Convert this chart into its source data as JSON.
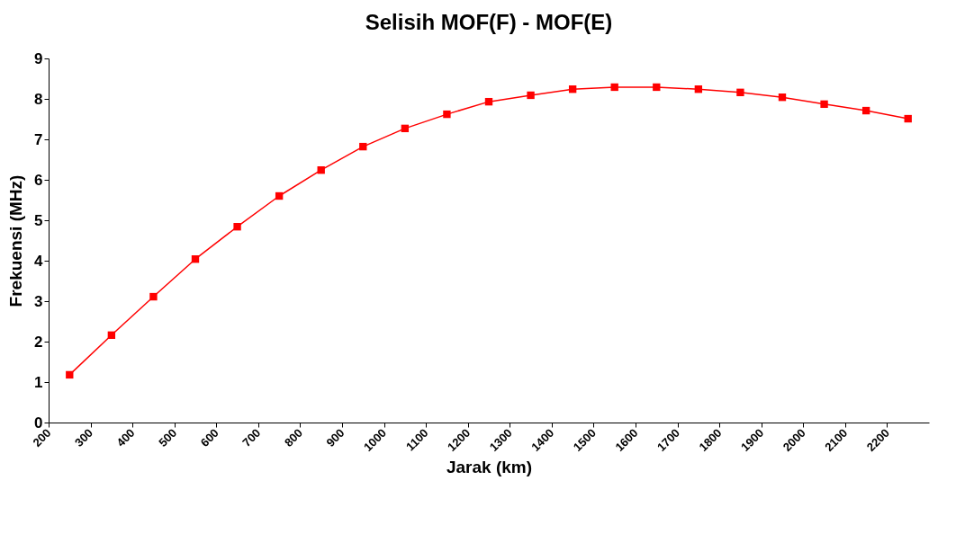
{
  "chart_data": {
    "type": "line",
    "title": "Selisih MOF(F) - MOF(E)",
    "xlabel": "Jarak (km)",
    "ylabel": "Frekuensi (MHz)",
    "x": [
      250,
      350,
      450,
      550,
      650,
      750,
      850,
      950,
      1050,
      1150,
      1250,
      1350,
      1450,
      1550,
      1650,
      1750,
      1850,
      1950,
      2050,
      2150,
      2250
    ],
    "series": [
      {
        "color": "#ff0000",
        "values": [
          1.18,
          2.16,
          3.11,
          4.04,
          4.84,
          5.6,
          6.24,
          6.82,
          7.27,
          7.62,
          7.93,
          8.09,
          8.24,
          8.29,
          8.29,
          8.24,
          8.16,
          8.04,
          7.87,
          7.71,
          7.51
        ]
      }
    ],
    "xlim": [
      200,
      2300
    ],
    "xticks": [
      200,
      300,
      400,
      500,
      600,
      700,
      800,
      900,
      1000,
      1100,
      1200,
      1300,
      1400,
      1500,
      1600,
      1700,
      1800,
      1900,
      2000,
      2100,
      2200
    ],
    "ylim": [
      0,
      9
    ],
    "yticks": [
      0,
      1,
      2,
      3,
      4,
      5,
      6,
      7,
      8,
      9
    ],
    "grid": false,
    "legend": false,
    "marker": "square",
    "line_style": "solid"
  }
}
